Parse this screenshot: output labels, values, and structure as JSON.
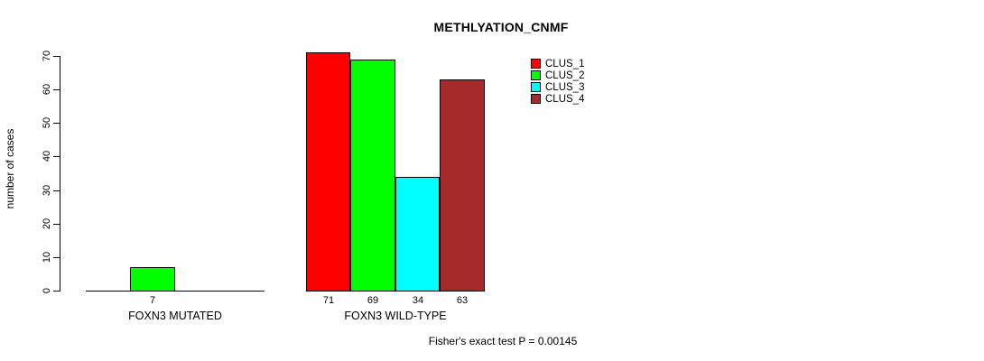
{
  "chart_data": {
    "type": "bar",
    "title": "METHLYATION_CNMF",
    "ylabel": "number of cases",
    "xlabel": "",
    "ylim": [
      0,
      70
    ],
    "yticks": [
      0,
      10,
      20,
      30,
      40,
      50,
      60,
      70
    ],
    "grid": false,
    "legend_position": "top-right",
    "series": [
      {
        "name": "CLUS_1",
        "color": "#FF0000"
      },
      {
        "name": "CLUS_2",
        "color": "#00FF00"
      },
      {
        "name": "CLUS_3",
        "color": "#00FFFF"
      },
      {
        "name": "CLUS_4",
        "color": "#A52A2A"
      }
    ],
    "categories": [
      "FOXN3 MUTATED",
      "FOXN3 WILD-TYPE"
    ],
    "groups": [
      {
        "label": "FOXN3 MUTATED",
        "values": [
          0,
          7,
          0,
          0
        ]
      },
      {
        "label": "FOXN3 WILD-TYPE",
        "values": [
          71,
          69,
          34,
          63
        ]
      }
    ],
    "bar_labels": [
      [
        "",
        "7",
        "",
        ""
      ],
      [
        "71",
        "69",
        "34",
        "63"
      ]
    ],
    "annotation": "Fisher's exact test P = 0.00145",
    "colors": {
      "background": "#FFFFFF",
      "axis": "#000000",
      "text": "#000000",
      "bar_border": "#000000"
    }
  }
}
